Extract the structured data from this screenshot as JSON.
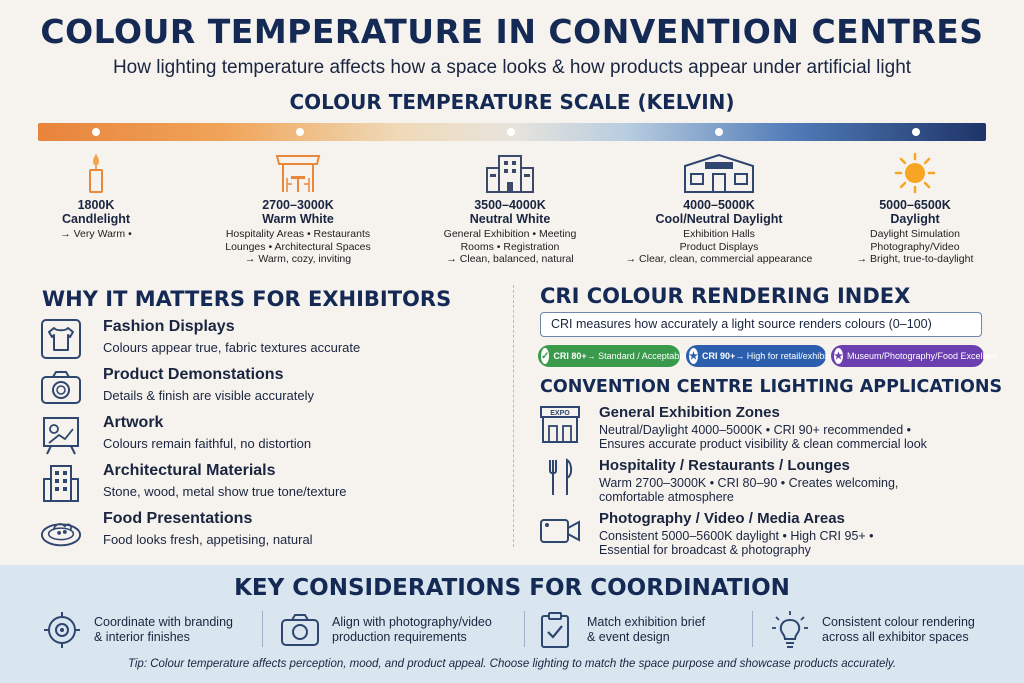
{
  "header": {
    "title": "COLOUR TEMPERATURE IN CONVENTION CENTRES",
    "subtitle": "How lighting temperature affects how a space looks & how products appear under artificial light",
    "scale_title": "COLOUR TEMPERATURE SCALE (KELVIN)"
  },
  "scale": [
    {
      "range": "1800K",
      "name": "Candlelight",
      "desc": [
        "→ Very Warm •"
      ],
      "icon": "candle-icon"
    },
    {
      "range": "2700–3000K",
      "name": "Warm White",
      "desc": [
        "Hospitality Areas • Restaurants",
        "Lounges • Architectural Spaces",
        "→ Warm, cozy, inviting"
      ],
      "icon": "restaurant-icon"
    },
    {
      "range": "3500–4000K",
      "name": "Neutral White",
      "desc": [
        "General Exhibition • Meeting",
        "Rooms • Registration",
        "→ Clean, balanced, natural"
      ],
      "icon": "building-icon"
    },
    {
      "range": "4000–5000K",
      "name": "Cool/Neutral Daylight",
      "desc": [
        "Exhibition Halls",
        "Product Displays",
        "→ Clear, clean, commercial appearance"
      ],
      "icon": "expo-hall-icon"
    },
    {
      "range": "5000–6500K",
      "name": "Daylight",
      "desc": [
        "Daylight Simulation",
        "Photography/Video",
        "→ Bright, true-to-daylight"
      ],
      "icon": "sun-icon"
    }
  ],
  "exhibitors": {
    "title": "WHY IT MATTERS FOR EXHIBITORS",
    "items": [
      {
        "title": "Fashion Displays",
        "desc": "Colours appear true, fabric textures accurate",
        "icon": "tshirt-icon"
      },
      {
        "title": "Product Demonstations",
        "desc": "Details & finish are visible accurately",
        "icon": "camera-icon"
      },
      {
        "title": "Artwork",
        "desc": "Colours remain faithful, no distortion",
        "icon": "easel-icon"
      },
      {
        "title": "Architectural Materials",
        "desc": "Stone, wood, metal show true tone/texture",
        "icon": "building-icon"
      },
      {
        "title": "Food Presentations",
        "desc": "Food looks fresh, appetising, natural",
        "icon": "food-plate-icon"
      }
    ]
  },
  "cri": {
    "title": "CRI COLOUR RENDERING INDEX",
    "description": "CRI measures how accurately a light source renders colours (0–100)",
    "badges": [
      {
        "strong": "CRI 80+",
        "text": " → Standard / Acceptable",
        "color": "#3a9a4b",
        "icon": "check-icon"
      },
      {
        "strong": "CRI 90+",
        "text": " → High for retail/exhibits",
        "color": "#2b5fae",
        "icon": "star-icon"
      },
      {
        "strong": "",
        "text": "Museum/Photography/Food Excellent",
        "color": "#6b3fb0",
        "icon": "star-icon"
      }
    ]
  },
  "applications": {
    "title": "CONVENTION CENTRE LIGHTING APPLICATIONS",
    "items": [
      {
        "title": "General Exhibition Zones",
        "desc": [
          "Neutral/Daylight 4000–5000K • CRI 90+ recommended •",
          "Ensures accurate product visibility & clean commercial look"
        ],
        "icon": "expo-booth-icon",
        "icon_label": "EXPO"
      },
      {
        "title": "Hospitality / Restaurants / Lounges",
        "desc": [
          "Warm 2700–3000K • CRI 80–90 • Creates welcoming,",
          "comfortable atmosphere"
        ],
        "icon": "fork-knife-icon"
      },
      {
        "title": "Photography / Video / Media Areas",
        "desc": [
          "Consistent 5000–5600K daylight • High CRI 95+ •",
          "Essential for broadcast & photography"
        ],
        "icon": "video-camera-icon"
      }
    ]
  },
  "coordination": {
    "title": "KEY CONSIDERATIONS FOR COORDINATION",
    "items": [
      {
        "text": "Coordinate with branding\n& interior finishes",
        "icon": "target-icon"
      },
      {
        "text": "Align with photography/video\nproduction requirements",
        "icon": "camera-icon"
      },
      {
        "text": "Match exhibition brief\n& event design",
        "icon": "clipboard-check-icon"
      },
      {
        "text": "Consistent colour rendering\nacross all exhibitor spaces",
        "icon": "lightbulb-icon"
      }
    ],
    "tip": "Tip: Colour temperature affects perception, mood, and product appeal. Choose lighting to match the space purpose and showcase products accurately."
  }
}
